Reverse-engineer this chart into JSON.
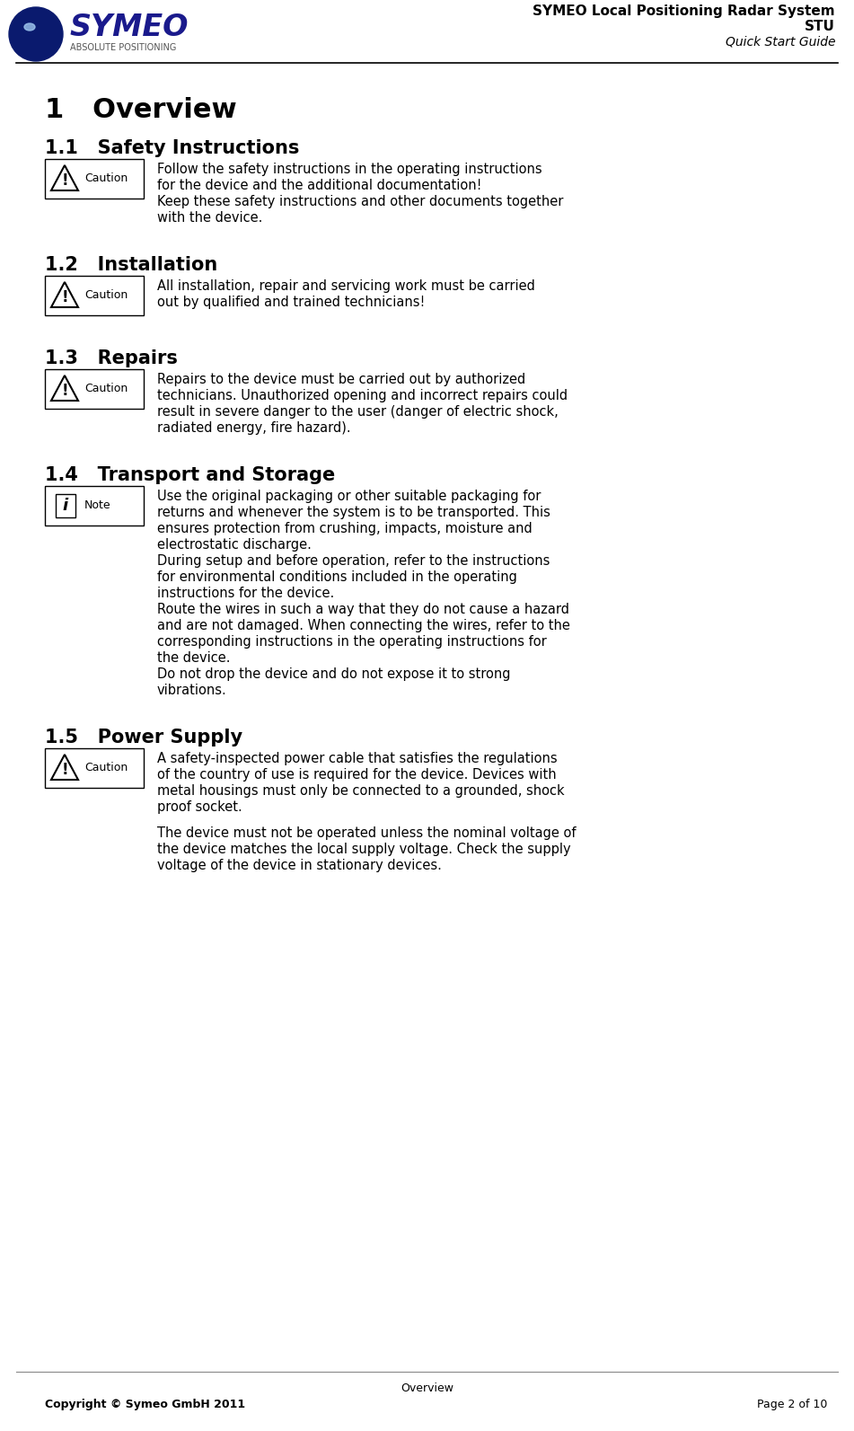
{
  "title_line1": "SYMEO Local Positioning Radar System",
  "title_line2": "STU",
  "title_line3": "Quick Start Guide",
  "section_title": "1   Overview",
  "subsections": [
    {
      "number": "1.1",
      "title": "Safety Instructions",
      "icon_type": "caution",
      "paragraphs": [
        "Follow the safety instructions in the operating instructions for the device and the additional documentation!",
        "Keep these safety instructions and other documents together with the device."
      ]
    },
    {
      "number": "1.2",
      "title": "Installation",
      "icon_type": "caution",
      "paragraphs": [
        "All installation, repair and servicing work must be carried out by qualified and trained technicians!"
      ]
    },
    {
      "number": "1.3",
      "title": "Repairs",
      "icon_type": "caution",
      "paragraphs": [
        "Repairs to the device must be carried out by authorized technicians. Unauthorized opening and incorrect repairs could result in severe danger to the user (danger of electric shock, radiated energy, fire hazard)."
      ]
    },
    {
      "number": "1.4",
      "title": "Transport and Storage",
      "icon_type": "note",
      "paragraphs": [
        "Use the original packaging or other suitable packaging for returns and whenever the system is to be transported. This ensures protection from crushing, impacts, moisture and electrostatic discharge.",
        "During setup and before operation, refer to the instructions for environmental conditions included in the operating instructions for the device.",
        "Route the wires in such a way that they do not cause a hazard and are not damaged. When connecting the wires, refer to the corresponding instructions in the operating instructions for the device.",
        "Do not drop the device and do not expose it to strong vibrations."
      ]
    },
    {
      "number": "1.5",
      "title": "Power Supply",
      "icon_type": "caution",
      "paragraphs": [
        "A safety-inspected power cable that satisfies the regulations of the country of use is required for the device. Devices with metal housings must only be connected to a grounded, shock proof socket.",
        "",
        "The device must not be operated unless the nominal voltage of the device matches the local supply voltage. Check the supply voltage of the device in stationary devices."
      ]
    }
  ],
  "footer_center": "Overview",
  "footer_left": "Copyright © Symeo GmbH 2011",
  "footer_right": "Page 2 of 10",
  "bg_color": "#ffffff",
  "text_color": "#000000"
}
